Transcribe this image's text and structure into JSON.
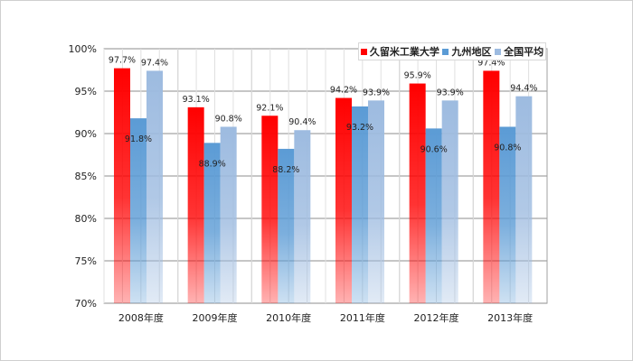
{
  "chart_data": {
    "type": "bar",
    "categories": [
      "2008年度",
      "2009年度",
      "2010年度",
      "2011年度",
      "2012年度",
      "2013年度"
    ],
    "series": [
      {
        "name": "久留米工業大学",
        "color": "#ff0000",
        "values": [
          97.7,
          93.1,
          92.1,
          94.2,
          95.9,
          97.4
        ],
        "labels": [
          "97.7%",
          "93.1%",
          "92.1%",
          "94.2%",
          "95.9%",
          "97.4%"
        ]
      },
      {
        "name": "九州地区",
        "color": "#5b9bd5",
        "values": [
          91.8,
          88.9,
          88.2,
          93.2,
          90.6,
          90.8
        ],
        "labels": [
          "91.8%",
          "88.9%",
          "88.2%",
          "93.2%",
          "90.6%",
          "90.8%"
        ]
      },
      {
        "name": "全国平均",
        "color": "#9dbbe0",
        "values": [
          97.4,
          90.8,
          90.4,
          93.9,
          93.9,
          94.4
        ],
        "labels": [
          "97.4%",
          "90.8%",
          "90.4%",
          "93.9%",
          "93.9%",
          "94.4%"
        ]
      }
    ],
    "ylim": [
      70,
      100
    ],
    "yticks": [
      70,
      75,
      80,
      85,
      90,
      95,
      100
    ],
    "ytick_labels": [
      "70%",
      "75%",
      "80%",
      "85%",
      "90%",
      "95%",
      "100%"
    ],
    "grid": true,
    "legend_position": "top-right"
  }
}
